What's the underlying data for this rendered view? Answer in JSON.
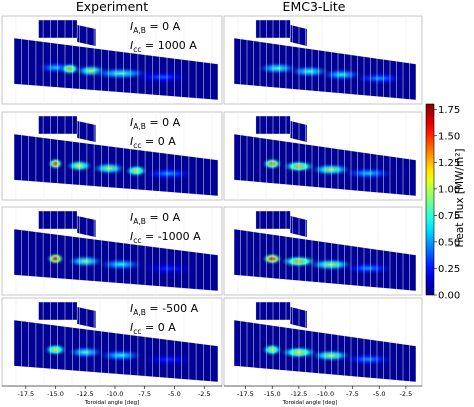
{
  "chart_data": {
    "type": "heatmap",
    "column_titles": [
      "Experiment",
      "EMC3-Lite"
    ],
    "rows": [
      {
        "ia_sub": "A,B",
        "ia_value": "= 0 A",
        "icc_sub": "cc",
        "icc_value": "= 1000 A"
      },
      {
        "ia_sub": "A,B",
        "ia_value": "= 0 A",
        "icc_sub": "cc",
        "icc_value": "= 0 A"
      },
      {
        "ia_sub": "A,B",
        "ia_value": "= 0 A",
        "icc_sub": "cc",
        "icc_value": "= -1000 A"
      },
      {
        "ia_sub": "A,B",
        "ia_value": "= -500 A",
        "icc_sub": "cc",
        "icc_value": "= 0 A"
      }
    ],
    "xlabel": "Toroidal angle [deg]",
    "x_ticks": [
      "-17.5",
      "-15.0",
      "-12.5",
      "-10.0",
      "-7.5",
      "-5.0",
      "-2.5"
    ],
    "x_tick_values": [
      -17.5,
      -15.0,
      -12.5,
      -10.0,
      -7.5,
      -5.0,
      -2.5
    ],
    "xlim": [
      -19.5,
      -1.0
    ],
    "colorbar": {
      "label": "Heat Flux [MW/m²]",
      "ticks": [
        "0.00",
        "0.25",
        "0.50",
        "0.75",
        "1.00",
        "1.25",
        "1.50",
        "1.75"
      ],
      "tick_values": [
        0.0,
        0.25,
        0.5,
        0.75,
        1.0,
        1.25,
        1.5,
        1.75
      ],
      "range": [
        0.0,
        1.8
      ],
      "colormap": "jet"
    },
    "hotspots": {
      "experiment": [
        [
          {
            "x": -15.0,
            "v": 0.6,
            "w": 1.6
          },
          {
            "x": -13.8,
            "v": 1.3,
            "w": 0.9
          },
          {
            "x": -12.0,
            "v": 1.0,
            "w": 1.4
          },
          {
            "x": -9.5,
            "v": 0.8,
            "w": 2.5
          },
          {
            "x": -6.0,
            "v": 0.4,
            "w": 2.5
          }
        ],
        [
          {
            "x": -15.0,
            "v": 1.5,
            "w": 0.7
          },
          {
            "x": -13.0,
            "v": 1.1,
            "w": 1.2
          },
          {
            "x": -10.5,
            "v": 1.0,
            "w": 1.5
          },
          {
            "x": -8.2,
            "v": 1.2,
            "w": 1.0
          },
          {
            "x": -5.5,
            "v": 0.5,
            "w": 2.2
          }
        ],
        [
          {
            "x": -15.0,
            "v": 1.6,
            "w": 0.8
          },
          {
            "x": -12.5,
            "v": 0.9,
            "w": 1.6
          },
          {
            "x": -9.5,
            "v": 0.7,
            "w": 2.0
          },
          {
            "x": -5.5,
            "v": 0.3,
            "w": 2.5
          }
        ],
        [
          {
            "x": -15.0,
            "v": 1.2,
            "w": 1.0
          },
          {
            "x": -12.5,
            "v": 0.8,
            "w": 1.6
          },
          {
            "x": -9.5,
            "v": 0.7,
            "w": 2.0
          },
          {
            "x": -5.5,
            "v": 0.3,
            "w": 2.5
          }
        ]
      ],
      "emc3_lite": [
        [
          {
            "x": -14.5,
            "v": 0.8,
            "w": 2.0
          },
          {
            "x": -11.5,
            "v": 0.8,
            "w": 2.0
          },
          {
            "x": -8.5,
            "v": 0.7,
            "w": 2.0
          },
          {
            "x": -5.0,
            "v": 0.5,
            "w": 2.5
          }
        ],
        [
          {
            "x": -15.0,
            "v": 1.4,
            "w": 1.0
          },
          {
            "x": -12.5,
            "v": 1.3,
            "w": 1.6
          },
          {
            "x": -9.5,
            "v": 1.0,
            "w": 2.0
          },
          {
            "x": -6.0,
            "v": 0.6,
            "w": 2.5
          }
        ],
        [
          {
            "x": -15.0,
            "v": 1.6,
            "w": 1.0
          },
          {
            "x": -12.5,
            "v": 1.3,
            "w": 1.8
          },
          {
            "x": -9.5,
            "v": 1.0,
            "w": 2.2
          },
          {
            "x": -6.0,
            "v": 0.5,
            "w": 2.5
          }
        ],
        [
          {
            "x": -15.0,
            "v": 1.2,
            "w": 1.0
          },
          {
            "x": -12.5,
            "v": 1.2,
            "w": 1.8
          },
          {
            "x": -9.5,
            "v": 1.0,
            "w": 2.0
          },
          {
            "x": -6.0,
            "v": 0.5,
            "w": 2.5
          }
        ]
      ]
    }
  }
}
